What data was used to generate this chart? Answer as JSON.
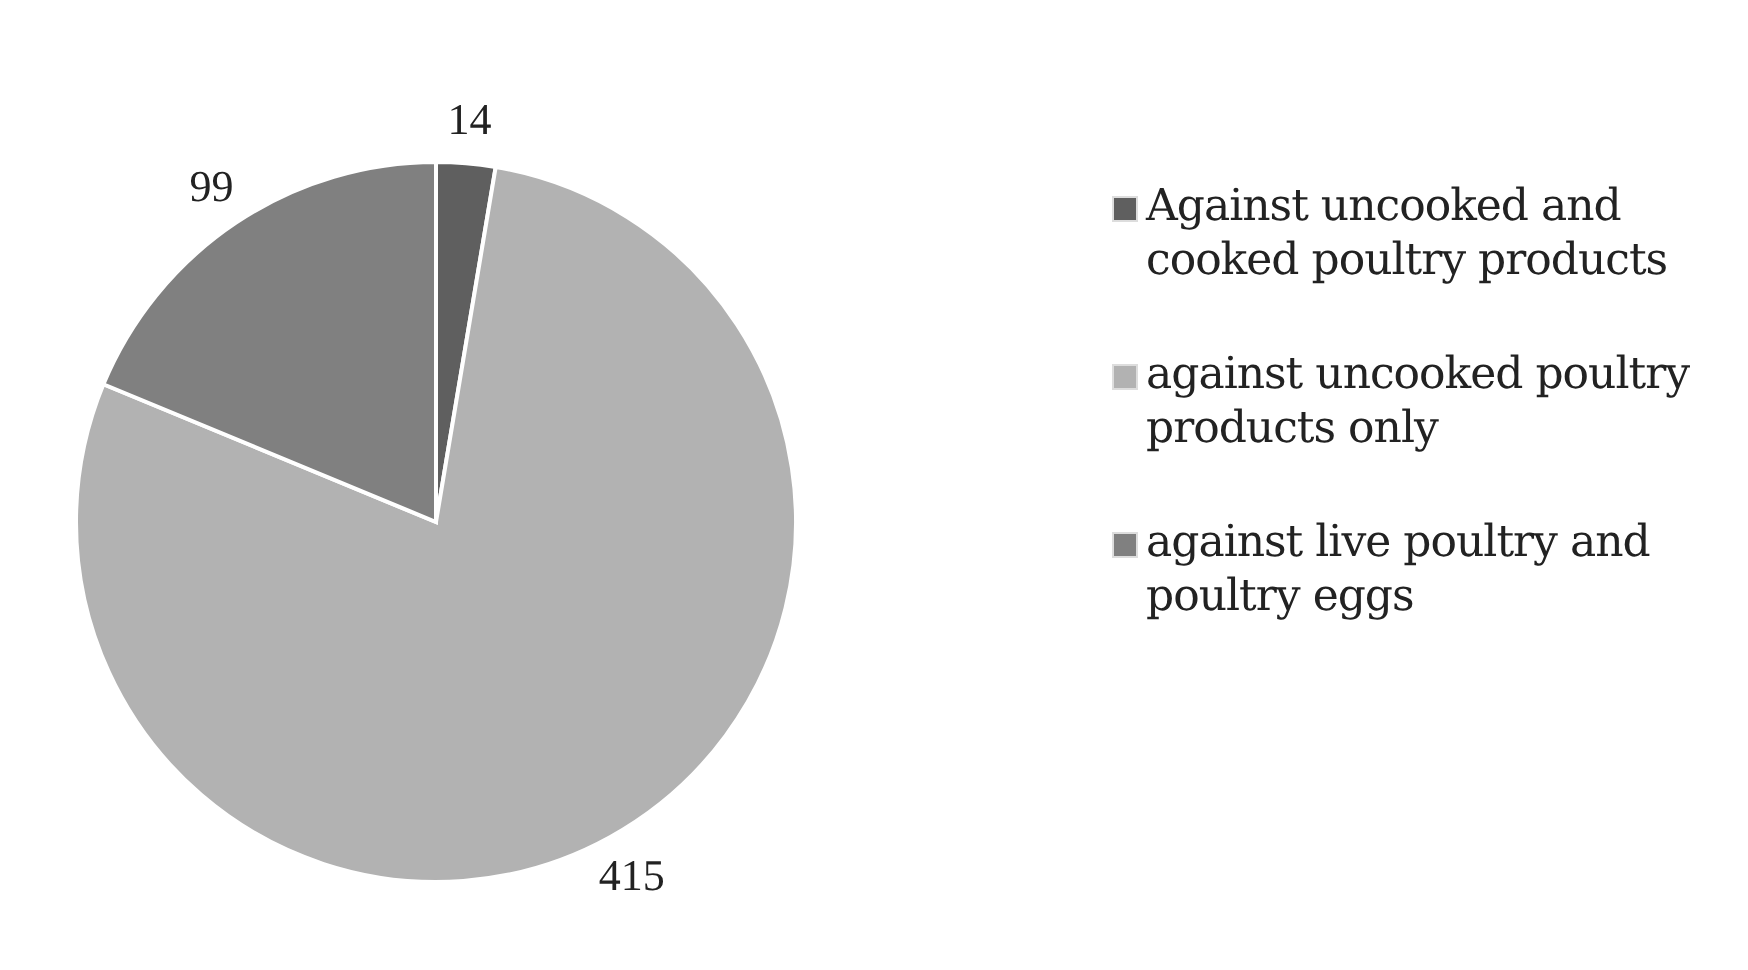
{
  "chart_data": {
    "type": "pie",
    "categories": [
      "Against uncooked and cooked poultry products",
      "against uncooked poultry products only",
      "against live poultry and poultry eggs"
    ],
    "values": [
      14,
      415,
      99
    ],
    "colors": [
      "#5f5f5f",
      "#b2b2b2",
      "#808080"
    ],
    "data_labels": true,
    "legend": "right"
  }
}
